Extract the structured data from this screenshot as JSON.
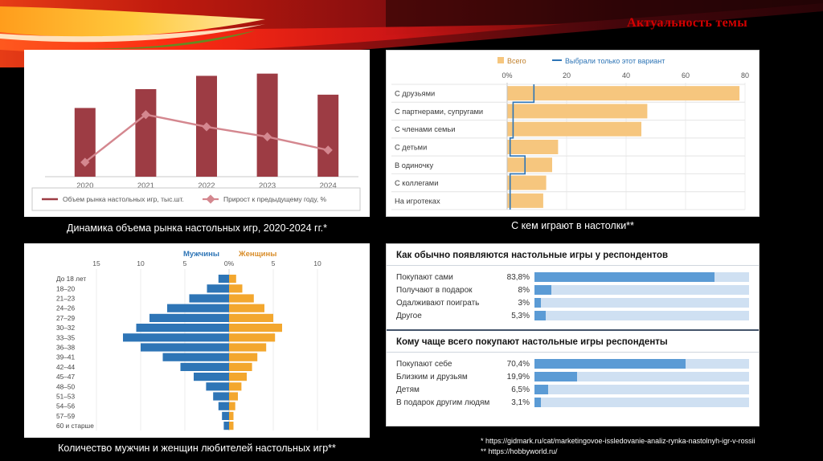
{
  "slide": {
    "title": "Актуальность темы",
    "captions": {
      "market": "Динамика объема рынка настольных игр, 2020-2024 гг.*",
      "with_whom": "С кем играют в настолки**",
      "pyramid": "Количество мужчин и женщин любителей настольных игр**"
    },
    "footnotes": [
      "* https://gidmark.ru/cat/marketingovoe-issledovanie-analiz-rynka-nastolnyh-igr-v-rossii",
      "** https://hobbyworld.ru/"
    ]
  },
  "chart_data": [
    {
      "id": "market-dynamics",
      "type": "bar",
      "categories": [
        "2020",
        "2021",
        "2022",
        "2023",
        "2024"
      ],
      "series": [
        {
          "name": "Объем рынка настольных игр, тыс.шт.",
          "kind": "bar",
          "color": "#9d3c44",
          "values": [
            62,
            79,
            91,
            93,
            74
          ]
        },
        {
          "name": "Прирост к предыдущему году, %",
          "kind": "line",
          "color": "#d4878f",
          "values": [
            13,
            56,
            45,
            36,
            24
          ]
        }
      ],
      "ylim": [
        0,
        100
      ],
      "legend_position": "bottom"
    },
    {
      "id": "play-with-whom",
      "type": "bar",
      "orientation": "horizontal",
      "categories": [
        "С друзьями",
        "С партнерами, супругами",
        "С членами семьи",
        "С детьми",
        "В одиночку",
        "С коллегами",
        "На игротеках"
      ],
      "series": [
        {
          "name": "Всего",
          "kind": "bar",
          "color": "#f6c67e",
          "label_color": "#c07f2a",
          "values": [
            78,
            47,
            45,
            17,
            15,
            13,
            12
          ]
        },
        {
          "name": "Выбрали только этот вариант",
          "kind": "step-line",
          "color": "#2e75b6",
          "label_color": "#2e75b6",
          "values": [
            9,
            2,
            2,
            1,
            6,
            1,
            1
          ]
        }
      ],
      "x_ticks": [
        "0%",
        "20",
        "40",
        "60",
        "80"
      ],
      "xlim": [
        0,
        80
      ],
      "legend_position": "top"
    },
    {
      "id": "gamers-age-pyramid",
      "type": "pyramid",
      "left_series": {
        "name": "Мужчины",
        "color": "#2e75b6"
      },
      "right_series": {
        "name": "Женщины",
        "color": "#f3a72e"
      },
      "x_ticks": [
        "15",
        "10",
        "5",
        "0%",
        "5",
        "10"
      ],
      "categories": [
        "До 18 лет",
        "18–20",
        "21–23",
        "24–26",
        "27–29",
        "30–32",
        "33–35",
        "36–38",
        "39–41",
        "42–44",
        "45–47",
        "48–50",
        "51–53",
        "54–56",
        "57–59",
        "60 и старше"
      ],
      "men": [
        1.2,
        2.5,
        4.5,
        7,
        9,
        10.5,
        12,
        10,
        7.5,
        5.5,
        4,
        2.6,
        1.8,
        1.2,
        0.8,
        0.6
      ],
      "women": [
        0.8,
        1.5,
        2.8,
        4,
        5,
        6,
        5.2,
        4.2,
        3.2,
        2.6,
        2,
        1.4,
        1,
        0.7,
        0.5,
        0.5
      ],
      "xlim": [
        -15,
        10
      ]
    },
    {
      "id": "acquisition",
      "type": "bar",
      "orientation": "horizontal",
      "bar_color": "#5b9bd5",
      "track_color": "#cfe0f2",
      "xlim": [
        0,
        100
      ],
      "sections": [
        {
          "title": "Как обычно появляются настольные игры у респондентов",
          "rows": [
            {
              "label": "Покупают сами",
              "value": 83.8,
              "display": "83,8%"
            },
            {
              "label": "Получают в подарок",
              "value": 8,
              "display": "8%"
            },
            {
              "label": "Одалживают поиграть",
              "value": 3,
              "display": "3%"
            },
            {
              "label": "Другое",
              "value": 5.3,
              "display": "5,3%"
            }
          ]
        },
        {
          "title": "Кому чаще всего покупают настольные игры респонденты",
          "rows": [
            {
              "label": "Покупают себе",
              "value": 70.4,
              "display": "70,4%"
            },
            {
              "label": "Близким и друзьям",
              "value": 19.9,
              "display": "19,9%"
            },
            {
              "label": "Детям",
              "value": 6.5,
              "display": "6,5%"
            },
            {
              "label": "В подарок другим людям",
              "value": 3.1,
              "display": "3,1%"
            }
          ]
        }
      ]
    }
  ]
}
